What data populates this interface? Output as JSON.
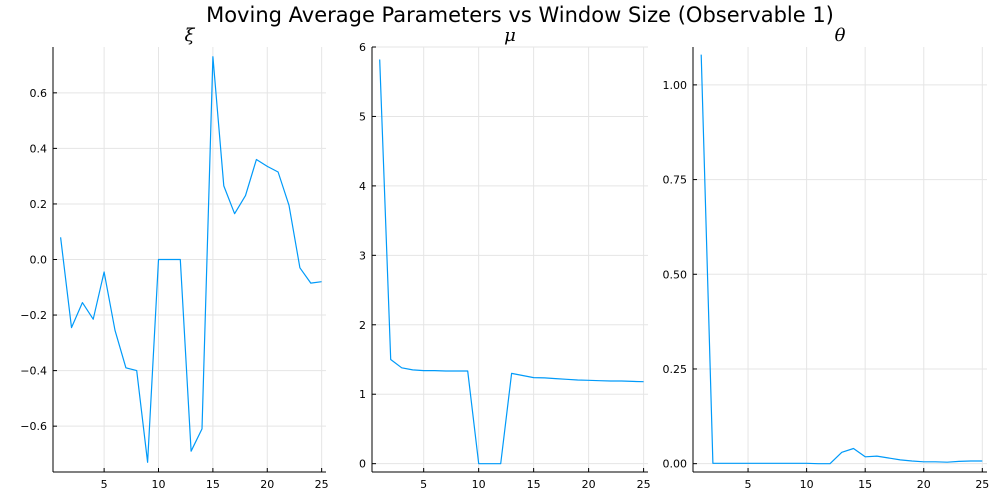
{
  "figure_title": "Moving Average Parameters vs Window Size (Observable 1)",
  "colors": {
    "series": "#009af9",
    "grid": "#e5e5e5",
    "axis": "#000000",
    "background": "#ffffff"
  },
  "chart_data": [
    {
      "type": "line",
      "title": "ξ",
      "xlabel": "",
      "ylabel": "",
      "grid": true,
      "legend": "none",
      "xlim": [
        0.3,
        25.4
      ],
      "ylim": [
        -0.765,
        0.765
      ],
      "xticks": [
        5,
        10,
        15,
        20,
        25
      ],
      "yticks": [
        -0.6,
        -0.4,
        -0.2,
        0.0,
        0.2,
        0.4,
        0.6
      ],
      "ytick_labels": [
        "−0.6",
        "−0.4",
        "−0.2",
        "0.0",
        "0.2",
        "0.4",
        "0.6"
      ],
      "x": [
        1,
        2,
        3,
        4,
        5,
        6,
        7,
        8,
        9,
        10,
        11,
        12,
        13,
        14,
        15,
        16,
        17,
        18,
        19,
        20,
        21,
        22,
        23,
        24,
        25
      ],
      "y": [
        0.08,
        -0.245,
        -0.155,
        -0.215,
        -0.045,
        -0.255,
        -0.39,
        -0.4,
        -0.73,
        0.0,
        0.0,
        0.0,
        -0.69,
        -0.61,
        0.73,
        0.265,
        0.165,
        0.23,
        0.36,
        0.335,
        0.315,
        0.195,
        -0.03,
        -0.085,
        -0.08
      ]
    },
    {
      "type": "line",
      "title": "μ",
      "xlabel": "",
      "ylabel": "",
      "grid": true,
      "legend": "none",
      "xlim": [
        0.3,
        25.4
      ],
      "ylim": [
        -0.12,
        6.0
      ],
      "xticks": [
        5,
        10,
        15,
        20,
        25
      ],
      "yticks": [
        0,
        1,
        2,
        3,
        4,
        5,
        6
      ],
      "ytick_labels": [
        "0",
        "1",
        "2",
        "3",
        "4",
        "5",
        "6"
      ],
      "x": [
        1,
        2,
        3,
        4,
        5,
        6,
        7,
        8,
        9,
        10,
        11,
        12,
        13,
        14,
        15,
        16,
        17,
        18,
        19,
        20,
        21,
        22,
        23,
        24,
        25
      ],
      "y": [
        5.82,
        1.5,
        1.38,
        1.35,
        1.34,
        1.34,
        1.335,
        1.335,
        1.335,
        0.0,
        0.0,
        0.0,
        1.3,
        1.27,
        1.24,
        1.235,
        1.225,
        1.215,
        1.205,
        1.2,
        1.195,
        1.19,
        1.19,
        1.185,
        1.18
      ]
    },
    {
      "type": "line",
      "title": "θ",
      "xlabel": "",
      "ylabel": "",
      "grid": true,
      "legend": "none",
      "xlim": [
        0.3,
        25.4
      ],
      "ylim": [
        -0.022,
        1.1
      ],
      "xticks": [
        5,
        10,
        15,
        20,
        25
      ],
      "yticks": [
        0.0,
        0.25,
        0.5,
        0.75,
        1.0
      ],
      "ytick_labels": [
        "0.00",
        "0.25",
        "0.50",
        "0.75",
        "1.00"
      ],
      "x": [
        1,
        2,
        3,
        4,
        5,
        6,
        7,
        8,
        9,
        10,
        11,
        12,
        13,
        14,
        15,
        16,
        17,
        18,
        19,
        20,
        21,
        22,
        23,
        24,
        25
      ],
      "y": [
        1.08,
        0.001,
        0.001,
        0.001,
        0.001,
        0.001,
        0.001,
        0.001,
        0.001,
        0.001,
        0.0,
        0.0,
        0.03,
        0.04,
        0.018,
        0.02,
        0.015,
        0.01,
        0.007,
        0.005,
        0.005,
        0.004,
        0.006,
        0.007,
        0.007
      ]
    }
  ]
}
